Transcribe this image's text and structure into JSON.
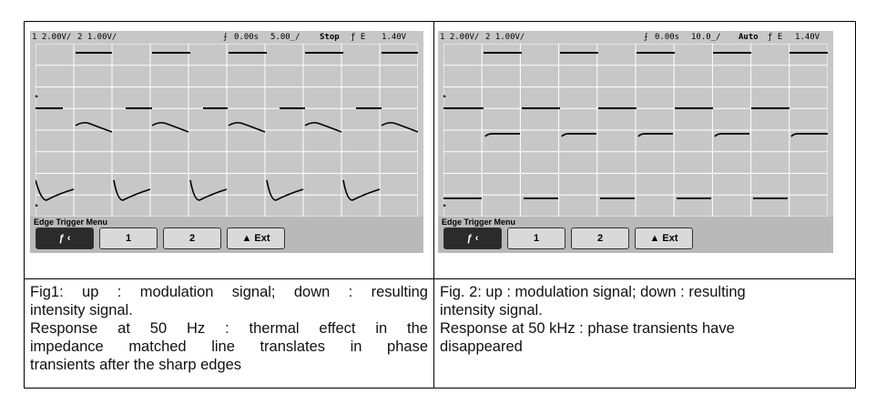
{
  "figures": [
    {
      "id": "fig1",
      "scope_status": {
        "ch1_scale": "1 2.00V/",
        "ch2_scale": "2 1.00V/",
        "trig_icon": "trigger-edge-icon",
        "time_offset": "0.00s",
        "time_scale": "5.00̲/",
        "run_state": "Stop",
        "trig_slope": "ƒ E",
        "trig_level": "1.40V"
      },
      "menu": {
        "title": "Edge Trigger Menu",
        "softkeys": [
          "ƒ  ‹",
          "1",
          "2",
          "▲  Ext"
        ]
      },
      "caption": [
        "Fig1: up : modulation signal; down  : resulting",
        "intensity signal.",
        "Response at 50 Hz : thermal effect in the",
        "impedance matched line translates in phase",
        "transients after the sharp edges"
      ]
    },
    {
      "id": "fig2",
      "scope_status": {
        "ch1_scale": "1 2.00V/",
        "ch2_scale": "2 1.00V/",
        "trig_icon": "trigger-edge-icon",
        "time_offset": "0.00s",
        "time_scale": "10.0̲/",
        "run_state": "Auto",
        "trig_slope": "ƒ E",
        "trig_level": "1.40V"
      },
      "menu": {
        "title": "Edge Trigger Menu",
        "softkeys": [
          "ƒ  ‹",
          "1",
          "2",
          "▲  Ext"
        ]
      },
      "caption": [
        "Fig. 2: up : modulation signal; down  : resulting",
        "intensity signal.",
        " Response at 50 kHz : phase transients have",
        "disappeared"
      ]
    }
  ],
  "colors": {
    "screen_bg": "#c7c7c7",
    "trace": "#000000",
    "grid": "#ffffff",
    "menu_bg": "#b9b9b9"
  }
}
